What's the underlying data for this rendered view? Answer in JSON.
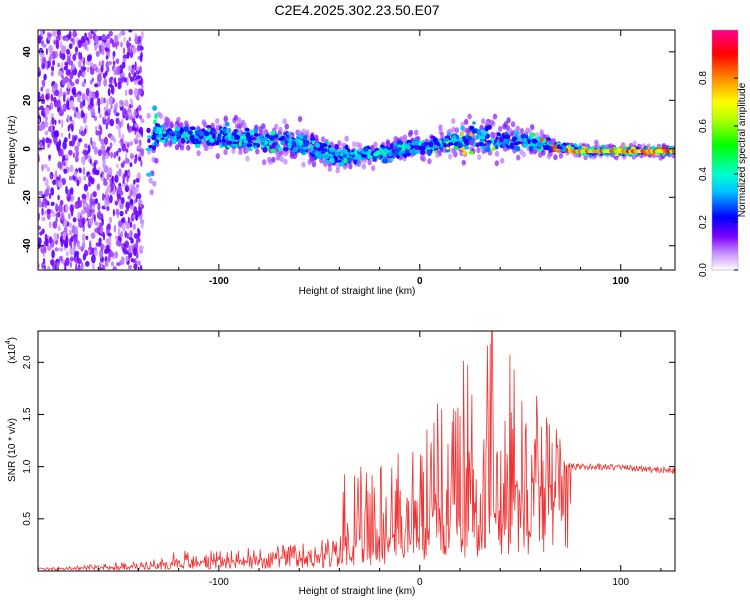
{
  "chart_data": [
    {
      "type": "heatmap",
      "title": "C2E4.2025.302.23.50.E07",
      "xlabel": "Height of straight line (km)",
      "ylabel": "Frequency (Hz)",
      "xlim": [
        -190,
        127
      ],
      "ylim": [
        -50,
        49
      ],
      "xticks": [
        -100,
        0,
        100
      ],
      "yticks": [
        -40,
        -20,
        0,
        20,
        40
      ],
      "colorbar": {
        "label": "Normalized spectral amplitude",
        "range": [
          0,
          1
        ],
        "ticks": [
          0.0,
          0.2,
          0.4,
          0.6,
          0.8
        ],
        "tick_labels": [
          "0.0",
          "0.2",
          "0.4",
          "0.6",
          "0.8"
        ]
      },
      "ridge": {
        "description_points_x": [
          -190,
          -140,
          -130,
          -100,
          -60,
          -40,
          -20,
          0,
          20,
          25,
          40,
          60,
          75,
          85,
          100,
          127
        ],
        "center_freq": [
          3,
          4,
          6,
          5,
          2,
          -3,
          -2,
          1,
          3,
          5,
          4,
          2,
          0,
          -1,
          -1,
          -1
        ],
        "band_halfwidth": [
          45,
          45,
          6,
          6,
          6,
          5,
          4,
          4,
          6,
          8,
          6,
          4,
          2,
          2,
          2,
          2
        ]
      }
    },
    {
      "type": "line",
      "xlabel": "Height of straight line (km)",
      "ylabel": "SNR (10 * v/v)",
      "scale_label": "(x10",
      "scale_exp": "4",
      "scale_close": ")",
      "xlim": [
        -190,
        127
      ],
      "ylim": [
        0,
        2.3
      ],
      "xticks": [
        -100,
        0,
        100
      ],
      "yticks": [
        0.5,
        1.0,
        1.5,
        2.0
      ],
      "ytick_labels": [
        "0.5",
        "1.0",
        "1.5",
        "2.0"
      ],
      "color": "#ee3333",
      "envelope": {
        "x": [
          -190,
          -140,
          -120,
          -90,
          -60,
          -40,
          -38,
          -20,
          0,
          10,
          20,
          30,
          35,
          50,
          65,
          75,
          90,
          110,
          127
        ],
        "base": [
          0.02,
          0.04,
          0.08,
          0.1,
          0.12,
          0.15,
          0.25,
          0.3,
          0.4,
          0.55,
          0.6,
          0.65,
          0.7,
          0.75,
          0.8,
          1.0,
          1.0,
          0.98,
          0.96
        ],
        "spike": [
          0.01,
          0.05,
          0.12,
          0.12,
          0.14,
          0.2,
          0.7,
          0.8,
          0.9,
          1.1,
          1.4,
          1.6,
          1.6,
          1.3,
          0.7,
          0.06,
          0.04,
          0.04,
          0.04
        ],
        "peak_x": 36,
        "peak_value": 2.3
      }
    }
  ]
}
